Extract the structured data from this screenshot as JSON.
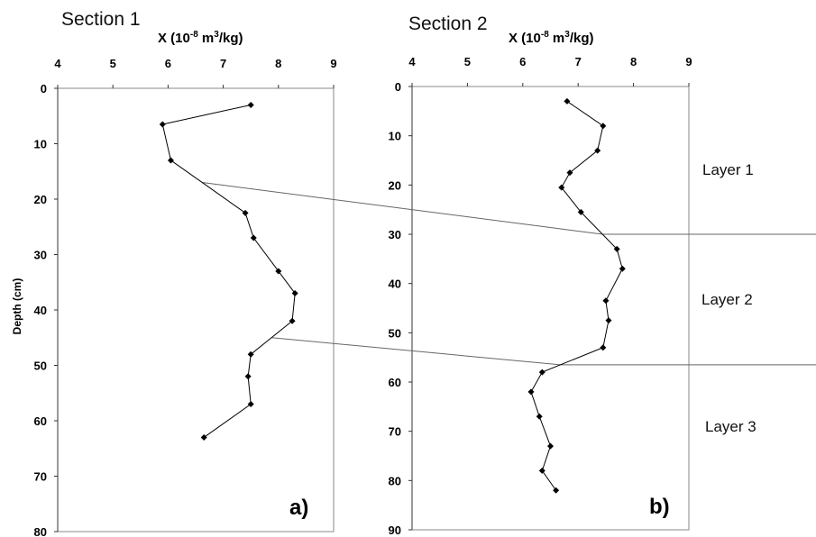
{
  "chart_data": [
    {
      "type": "line",
      "title": "Section 1",
      "xlabel_main": "X (10",
      "xlabel_exp1": "-8",
      "xlabel_mid": " m",
      "xlabel_exp2": "3",
      "xlabel_end": "/kg)",
      "ylabel": "Depth (cm)",
      "xlim": [
        4,
        9
      ],
      "ylim": [
        0,
        80
      ],
      "x_ticks": [
        "4",
        "5",
        "6",
        "7",
        "8",
        "9"
      ],
      "y_ticks": [
        "0",
        "10",
        "20",
        "30",
        "40",
        "50",
        "60",
        "70",
        "80"
      ],
      "panel_label": "a)",
      "series": [
        {
          "x": [
            7.5,
            5.9,
            6.05,
            7.4,
            7.55,
            8.0,
            8.3,
            8.25,
            7.5,
            7.45,
            7.5,
            6.65
          ],
          "y": [
            3,
            6.5,
            13,
            22.5,
            27,
            33,
            37,
            42,
            48,
            52,
            57,
            63
          ]
        }
      ]
    },
    {
      "type": "line",
      "title": "Section 2",
      "xlabel_main": "X (10",
      "xlabel_exp1": "-8",
      "xlabel_mid": " m",
      "xlabel_exp2": "3",
      "xlabel_end": "/kg)",
      "xlim": [
        4,
        9
      ],
      "ylim": [
        0,
        90
      ],
      "x_ticks": [
        "4",
        "5",
        "6",
        "7",
        "8",
        "9"
      ],
      "y_ticks": [
        "0",
        "10",
        "20",
        "30",
        "40",
        "50",
        "60",
        "70",
        "80",
        "90"
      ],
      "panel_label": "b)",
      "series": [
        {
          "x": [
            6.8,
            7.45,
            7.35,
            6.85,
            6.7,
            7.05,
            7.7,
            7.8,
            7.5,
            7.55,
            7.45,
            6.35,
            6.15,
            6.3,
            6.5,
            6.35,
            6.6
          ],
          "y": [
            3,
            8,
            13,
            17.5,
            20.5,
            25.5,
            33,
            37,
            43.5,
            47.5,
            53,
            58,
            62,
            67,
            73,
            78,
            82
          ]
        }
      ]
    }
  ],
  "layers": [
    "Layer 1",
    "Layer 2",
    "Layer 3"
  ],
  "correlations": [
    {
      "depth_section1": 17,
      "depth_section2": 30
    },
    {
      "depth_section1": 45,
      "depth_section2": 56.5
    }
  ]
}
